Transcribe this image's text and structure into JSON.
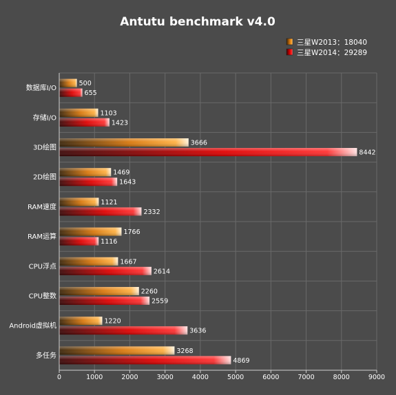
{
  "chart_data": {
    "type": "bar",
    "orientation": "horizontal",
    "title": "Antutu benchmark v4.0",
    "categories": [
      "数据库I/O",
      "存储I/O",
      "3D绘图",
      "2D绘图",
      "RAM速度",
      "RAM运算",
      "CPU浮点",
      "CPU整数",
      "Android虚拟机",
      "多任务"
    ],
    "series": [
      {
        "legend": "三星W2013：18040",
        "color": "#ff8c00",
        "values": [
          500,
          1103,
          3666,
          1469,
          1121,
          1766,
          1667,
          2260,
          1220,
          3268
        ]
      },
      {
        "legend": "三星W2014：29289",
        "color": "#ff0000",
        "values": [
          655,
          1423,
          8442,
          1643,
          2332,
          1116,
          2614,
          2559,
          3636,
          4869
        ]
      }
    ],
    "xlim": [
      0,
      9000
    ],
    "xticks": [
      "0",
      "1000",
      "2000",
      "3000",
      "4000",
      "5000",
      "6000",
      "7000",
      "8000",
      "9000"
    ],
    "grid": true,
    "legend_position": "top-right"
  }
}
